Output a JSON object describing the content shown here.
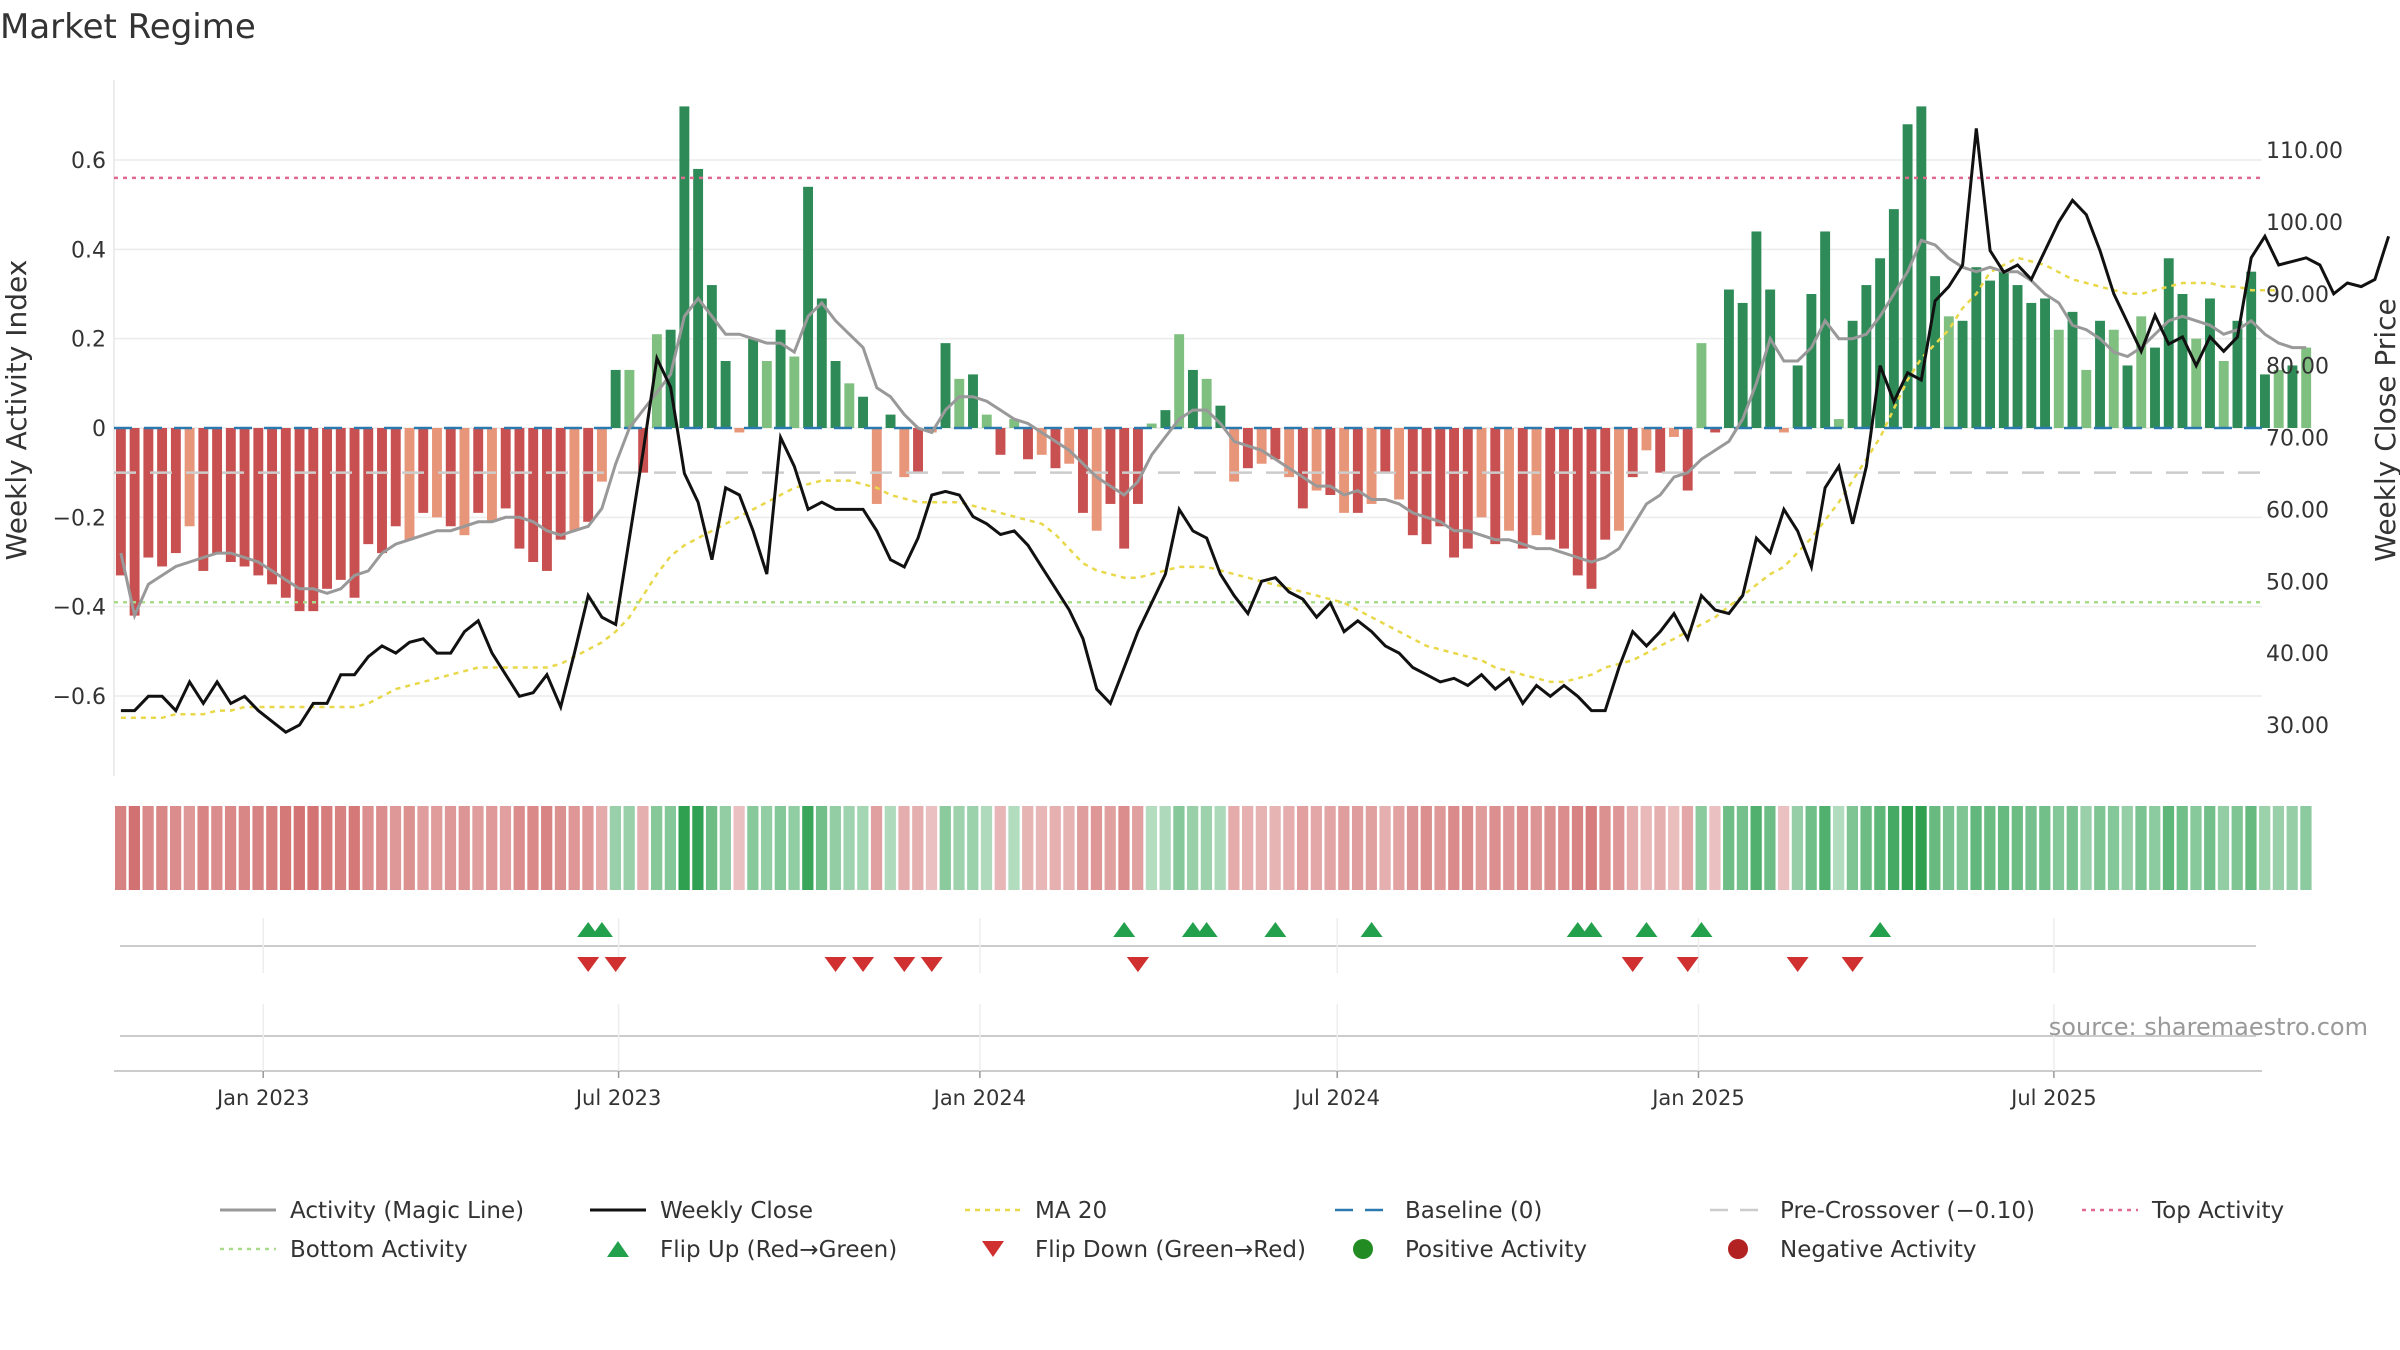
{
  "chart_data": {
    "type": "bar",
    "title": "Market Regime",
    "ylabel": "Weekly Activity Index",
    "y2label": "Weekly Close Price",
    "source": "source: sharemaestro.com",
    "ylim": [
      -0.77,
      0.77
    ],
    "y2lim": [
      23.0,
      119.0
    ],
    "yticks": [
      -0.6,
      -0.4,
      -0.2,
      0,
      0.2,
      0.4,
      0.6
    ],
    "yticklabels": [
      "−0.6",
      "−0.4",
      "−0.2",
      "0",
      "0.2",
      "0.4",
      "0.6"
    ],
    "y2ticks": [
      30,
      40,
      50,
      60,
      70,
      80,
      90,
      100,
      110
    ],
    "y2ticklabels": [
      "30.00",
      "40.00",
      "50.00",
      "60.00",
      "70.00",
      "80.00",
      "90.00",
      "100.00",
      "110.00"
    ],
    "x_range": [
      "2022-10-17",
      "2025-10-15"
    ],
    "xticks": [
      {
        "date": "2023-01-01",
        "label": "Jan 2023"
      },
      {
        "date": "2023-07-01",
        "label": "Jul 2023"
      },
      {
        "date": "2024-01-01",
        "label": "Jan 2024"
      },
      {
        "date": "2024-07-01",
        "label": "Jul 2024"
      },
      {
        "date": "2025-01-01",
        "label": "Jan 2025"
      },
      {
        "date": "2025-07-01",
        "label": "Jul 2025"
      }
    ],
    "weeks_start": "2022-10-17",
    "activity": [
      -0.33,
      -0.42,
      -0.29,
      -0.31,
      -0.28,
      -0.22,
      -0.32,
      -0.28,
      -0.3,
      -0.31,
      -0.33,
      -0.35,
      -0.38,
      -0.41,
      -0.41,
      -0.36,
      -0.34,
      -0.38,
      -0.26,
      -0.28,
      -0.22,
      -0.25,
      -0.19,
      -0.2,
      -0.22,
      -0.24,
      -0.19,
      -0.21,
      -0.18,
      -0.27,
      -0.3,
      -0.32,
      -0.25,
      -0.23,
      -0.21,
      -0.12,
      0.13,
      0.13,
      -0.1,
      0.21,
      0.22,
      0.72,
      0.58,
      0.32,
      0.15,
      -0.01,
      0.2,
      0.15,
      0.22,
      0.16,
      0.54,
      0.29,
      0.15,
      0.1,
      0.07,
      -0.17,
      0.03,
      -0.11,
      -0.1,
      -0.01,
      0.19,
      0.11,
      0.12,
      0.03,
      -0.06,
      0.02,
      -0.07,
      -0.06,
      -0.09,
      -0.08,
      -0.19,
      -0.23,
      -0.17,
      -0.27,
      -0.17,
      0.01,
      0.04,
      0.21,
      0.13,
      0.11,
      0.05,
      -0.12,
      -0.09,
      -0.08,
      -0.07,
      -0.11,
      -0.18,
      -0.14,
      -0.15,
      -0.19,
      -0.19,
      -0.17,
      -0.1,
      -0.16,
      -0.24,
      -0.26,
      -0.22,
      -0.29,
      -0.27,
      -0.2,
      -0.26,
      -0.23,
      -0.27,
      -0.24,
      -0.25,
      -0.27,
      -0.33,
      -0.36,
      -0.25,
      -0.23,
      -0.11,
      -0.05,
      -0.1,
      -0.02,
      -0.14,
      0.19,
      -0.01,
      0.31,
      0.28,
      0.44,
      0.31,
      -0.01,
      0.14,
      0.3,
      0.44,
      0.02,
      0.24,
      0.32,
      0.38,
      0.49,
      0.68,
      0.72,
      0.34,
      0.25,
      0.24,
      0.36,
      0.33,
      0.35,
      0.32,
      0.28,
      0.29,
      0.22,
      0.26,
      0.13,
      0.24,
      0.22,
      0.14,
      0.25,
      0.18,
      0.38,
      0.3,
      0.2,
      0.29,
      0.15,
      0.24,
      0.35,
      0.12,
      0.13,
      0.14,
      0.18
    ],
    "magic_line": [
      -0.28,
      -0.42,
      -0.35,
      -0.33,
      -0.31,
      -0.3,
      -0.29,
      -0.28,
      -0.28,
      -0.29,
      -0.3,
      -0.32,
      -0.34,
      -0.36,
      -0.36,
      -0.37,
      -0.36,
      -0.33,
      -0.32,
      -0.28,
      -0.26,
      -0.25,
      -0.24,
      -0.23,
      -0.23,
      -0.22,
      -0.21,
      -0.21,
      -0.2,
      -0.2,
      -0.21,
      -0.23,
      -0.24,
      -0.23,
      -0.22,
      -0.18,
      -0.08,
      0.0,
      0.04,
      0.08,
      0.12,
      0.25,
      0.29,
      0.25,
      0.21,
      0.21,
      0.2,
      0.19,
      0.19,
      0.17,
      0.25,
      0.28,
      0.24,
      0.21,
      0.18,
      0.09,
      0.07,
      0.03,
      0.0,
      -0.01,
      0.04,
      0.07,
      0.07,
      0.06,
      0.04,
      0.02,
      0.01,
      -0.01,
      -0.03,
      -0.05,
      -0.08,
      -0.11,
      -0.13,
      -0.15,
      -0.12,
      -0.06,
      -0.02,
      0.02,
      0.04,
      0.04,
      0.01,
      -0.03,
      -0.04,
      -0.05,
      -0.07,
      -0.09,
      -0.11,
      -0.13,
      -0.13,
      -0.15,
      -0.14,
      -0.16,
      -0.16,
      -0.17,
      -0.19,
      -0.2,
      -0.21,
      -0.23,
      -0.23,
      -0.24,
      -0.25,
      -0.25,
      -0.26,
      -0.27,
      -0.27,
      -0.28,
      -0.29,
      -0.3,
      -0.29,
      -0.27,
      -0.22,
      -0.17,
      -0.15,
      -0.11,
      -0.1,
      -0.07,
      -0.05,
      -0.03,
      0.02,
      0.1,
      0.2,
      0.15,
      0.15,
      0.18,
      0.24,
      0.2,
      0.2,
      0.21,
      0.25,
      0.3,
      0.35,
      0.42,
      0.41,
      0.38,
      0.36,
      0.35,
      0.36,
      0.35,
      0.35,
      0.33,
      0.3,
      0.28,
      0.23,
      0.22,
      0.2,
      0.17,
      0.16,
      0.18,
      0.21,
      0.24,
      0.25,
      0.24,
      0.23,
      0.21,
      0.22,
      0.24,
      0.21,
      0.19,
      0.18,
      0.18
    ],
    "weekly_close": [
      32,
      32,
      34,
      34,
      32,
      36,
      33,
      36,
      33,
      34,
      32,
      30.5,
      29,
      30,
      33,
      33,
      37,
      37,
      39.5,
      41,
      40,
      41.5,
      42,
      40,
      40,
      43,
      44.5,
      40,
      37,
      34,
      34.5,
      37,
      32.5,
      40,
      48,
      45,
      44,
      56,
      68,
      81,
      77,
      65,
      61,
      53,
      63,
      62,
      57,
      51,
      70,
      66,
      60,
      61,
      60,
      60,
      60,
      57,
      53,
      52,
      56,
      62,
      62.5,
      62,
      59,
      58,
      56.5,
      57,
      55,
      52,
      49,
      46,
      42,
      35,
      33,
      38,
      43,
      47,
      51,
      60,
      57,
      56,
      51,
      48,
      45.5,
      50,
      50.5,
      48.5,
      47.5,
      45,
      47,
      43,
      44.5,
      43,
      41,
      40,
      38,
      37,
      36,
      36.5,
      35.5,
      37,
      35,
      36.5,
      33,
      35.5,
      34,
      35.5,
      34,
      32,
      32,
      38,
      43,
      41,
      43,
      45.5,
      42,
      48,
      46,
      45.5,
      48,
      56,
      54,
      60,
      57,
      52,
      63,
      66,
      58,
      66,
      80,
      75,
      79,
      78,
      89,
      91,
      94,
      113,
      96,
      93,
      94,
      92,
      96,
      100,
      103,
      101,
      96,
      90,
      86,
      82,
      87,
      83,
      84,
      80,
      84,
      82,
      84,
      95,
      98,
      94,
      94.5,
      95,
      94,
      90,
      91.5,
      91,
      92,
      98
    ],
    "ma20": [
      31,
      31,
      31,
      31,
      31.5,
      31.5,
      31.5,
      32,
      32,
      32.5,
      32.5,
      32.5,
      32.5,
      32.5,
      32.5,
      32.5,
      32.5,
      32.5,
      33,
      34,
      35,
      35.5,
      36,
      36.5,
      37,
      37.5,
      38,
      38,
      38,
      38,
      38,
      38,
      38.5,
      39.5,
      40.5,
      41.5,
      43,
      45,
      48,
      51,
      53.5,
      55,
      56,
      57,
      58,
      59,
      60,
      61,
      62,
      63,
      63.5,
      64,
      64,
      64,
      63.5,
      63,
      62,
      61.5,
      61,
      61,
      61,
      61,
      60.5,
      60,
      59.5,
      59,
      58.5,
      58,
      56.5,
      54.5,
      52.5,
      51.5,
      51,
      50.5,
      50.5,
      51,
      51.5,
      52,
      52,
      52,
      51.5,
      51,
      50.5,
      50,
      49.5,
      49,
      48.5,
      48,
      47.5,
      47,
      46,
      45,
      44,
      43,
      42,
      41,
      40.5,
      40,
      39.5,
      39,
      38,
      37.5,
      37,
      36.5,
      36,
      36,
      36.5,
      37,
      38,
      38.5,
      39,
      40,
      41,
      42,
      43,
      44,
      45,
      46.5,
      48,
      49.5,
      51,
      52,
      54,
      56,
      58.5,
      61,
      64,
      67,
      70,
      74,
      78,
      81,
      83,
      85,
      88,
      90,
      93,
      94,
      95,
      94.5,
      94,
      93,
      92,
      91.5,
      91,
      90.5,
      90,
      90,
      90.5,
      91,
      91.5,
      91.5,
      91.5,
      91,
      91,
      90.5,
      90.5,
      90.5
    ],
    "baseline": 0,
    "pre_crossover": -0.1,
    "top_activity": 0.56,
    "bottom_activity": -0.39,
    "flip_up_weeks": [
      34,
      35,
      73,
      78,
      79,
      84,
      91,
      107,
      106,
      111,
      115,
      128
    ],
    "flip_down_weeks": [
      34,
      36,
      52,
      54,
      57,
      59,
      74,
      74,
      110,
      114,
      122,
      126
    ],
    "legend": [
      {
        "key": "magic",
        "label": "Activity (Magic Line)"
      },
      {
        "key": "close",
        "label": "Weekly Close"
      },
      {
        "key": "ma",
        "label": "MA 20"
      },
      {
        "key": "baseline",
        "label": "Baseline (0)"
      },
      {
        "key": "pre",
        "label": "Pre-Crossover (−0.10)"
      },
      {
        "key": "top",
        "label": "Top Activity"
      },
      {
        "key": "bottom",
        "label": "Bottom Activity"
      },
      {
        "key": "flipup",
        "label": "Flip Up (Red→Green)"
      },
      {
        "key": "flipdown",
        "label": "Flip Down (Green→Red)"
      },
      {
        "key": "pos",
        "label": "Positive Activity"
      },
      {
        "key": "neg",
        "label": "Negative Activity"
      }
    ],
    "colors": {
      "pos_strong": "#2e8b57",
      "pos_weak": "#7fbf7f",
      "neg_strong": "#c85050",
      "neg_weak": "#e8967a",
      "magic": "#999999",
      "close": "#111111",
      "ma": "#e8d84a",
      "baseline": "#2a7ab0",
      "pre": "#cccccc",
      "top": "#e06b8f",
      "bottom": "#a8dc8a",
      "flipup": "#22a04b",
      "flipdown": "#d03030",
      "pos_dot": "#228b22",
      "neg_dot": "#b22222"
    }
  }
}
